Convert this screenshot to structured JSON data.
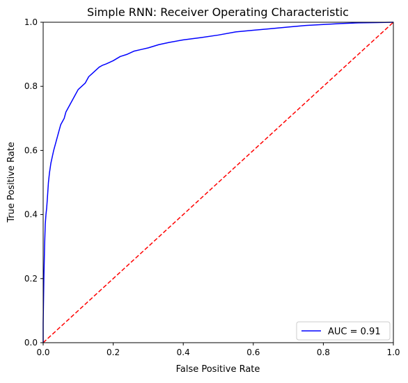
{
  "chart_data": {
    "type": "line",
    "title": "Simple RNN: Receiver Operating Characteristic",
    "xlabel": "False Positive Rate",
    "ylabel": "True Positive Rate",
    "xlim": [
      0.0,
      1.0
    ],
    "ylim": [
      0.0,
      1.0
    ],
    "x_ticks": [
      0.0,
      0.2,
      0.4,
      0.6,
      0.8,
      1.0
    ],
    "y_ticks": [
      0.0,
      0.2,
      0.4,
      0.6,
      0.8,
      1.0
    ],
    "x_tick_labels": [
      "0.0",
      "0.2",
      "0.4",
      "0.6",
      "0.8",
      "1.0"
    ],
    "y_tick_labels": [
      "0.0",
      "0.2",
      "0.4",
      "0.6",
      "0.8",
      "1.0"
    ],
    "grid": false,
    "legend_position": "lower-right",
    "series": [
      {
        "name": "AUC = 0.91",
        "color": "#0000ff",
        "line_style": "solid",
        "x": [
          0.0,
          0.0,
          0.002,
          0.004,
          0.006,
          0.008,
          0.01,
          0.012,
          0.015,
          0.018,
          0.022,
          0.026,
          0.03,
          0.035,
          0.04,
          0.045,
          0.05,
          0.055,
          0.06,
          0.065,
          0.07,
          0.075,
          0.08,
          0.09,
          0.1,
          0.11,
          0.12,
          0.13,
          0.14,
          0.15,
          0.16,
          0.17,
          0.18,
          0.2,
          0.22,
          0.24,
          0.26,
          0.28,
          0.3,
          0.33,
          0.36,
          0.4,
          0.45,
          0.5,
          0.55,
          0.6,
          0.65,
          0.7,
          0.75,
          0.8,
          0.85,
          0.9,
          0.95,
          1.0
        ],
        "y": [
          0.0,
          0.06,
          0.2,
          0.3,
          0.37,
          0.4,
          0.42,
          0.45,
          0.5,
          0.53,
          0.56,
          0.58,
          0.6,
          0.62,
          0.64,
          0.66,
          0.68,
          0.69,
          0.7,
          0.72,
          0.73,
          0.74,
          0.75,
          0.77,
          0.79,
          0.8,
          0.81,
          0.83,
          0.84,
          0.85,
          0.86,
          0.866,
          0.87,
          0.88,
          0.893,
          0.9,
          0.91,
          0.915,
          0.92,
          0.93,
          0.937,
          0.945,
          0.952,
          0.96,
          0.97,
          0.975,
          0.98,
          0.985,
          0.99,
          0.993,
          0.996,
          0.998,
          0.999,
          1.0
        ]
      },
      {
        "name": "",
        "color": "#ff0000",
        "line_style": "dashed",
        "x": [
          0.0,
          1.0
        ],
        "y": [
          0.0,
          1.0
        ]
      }
    ]
  }
}
